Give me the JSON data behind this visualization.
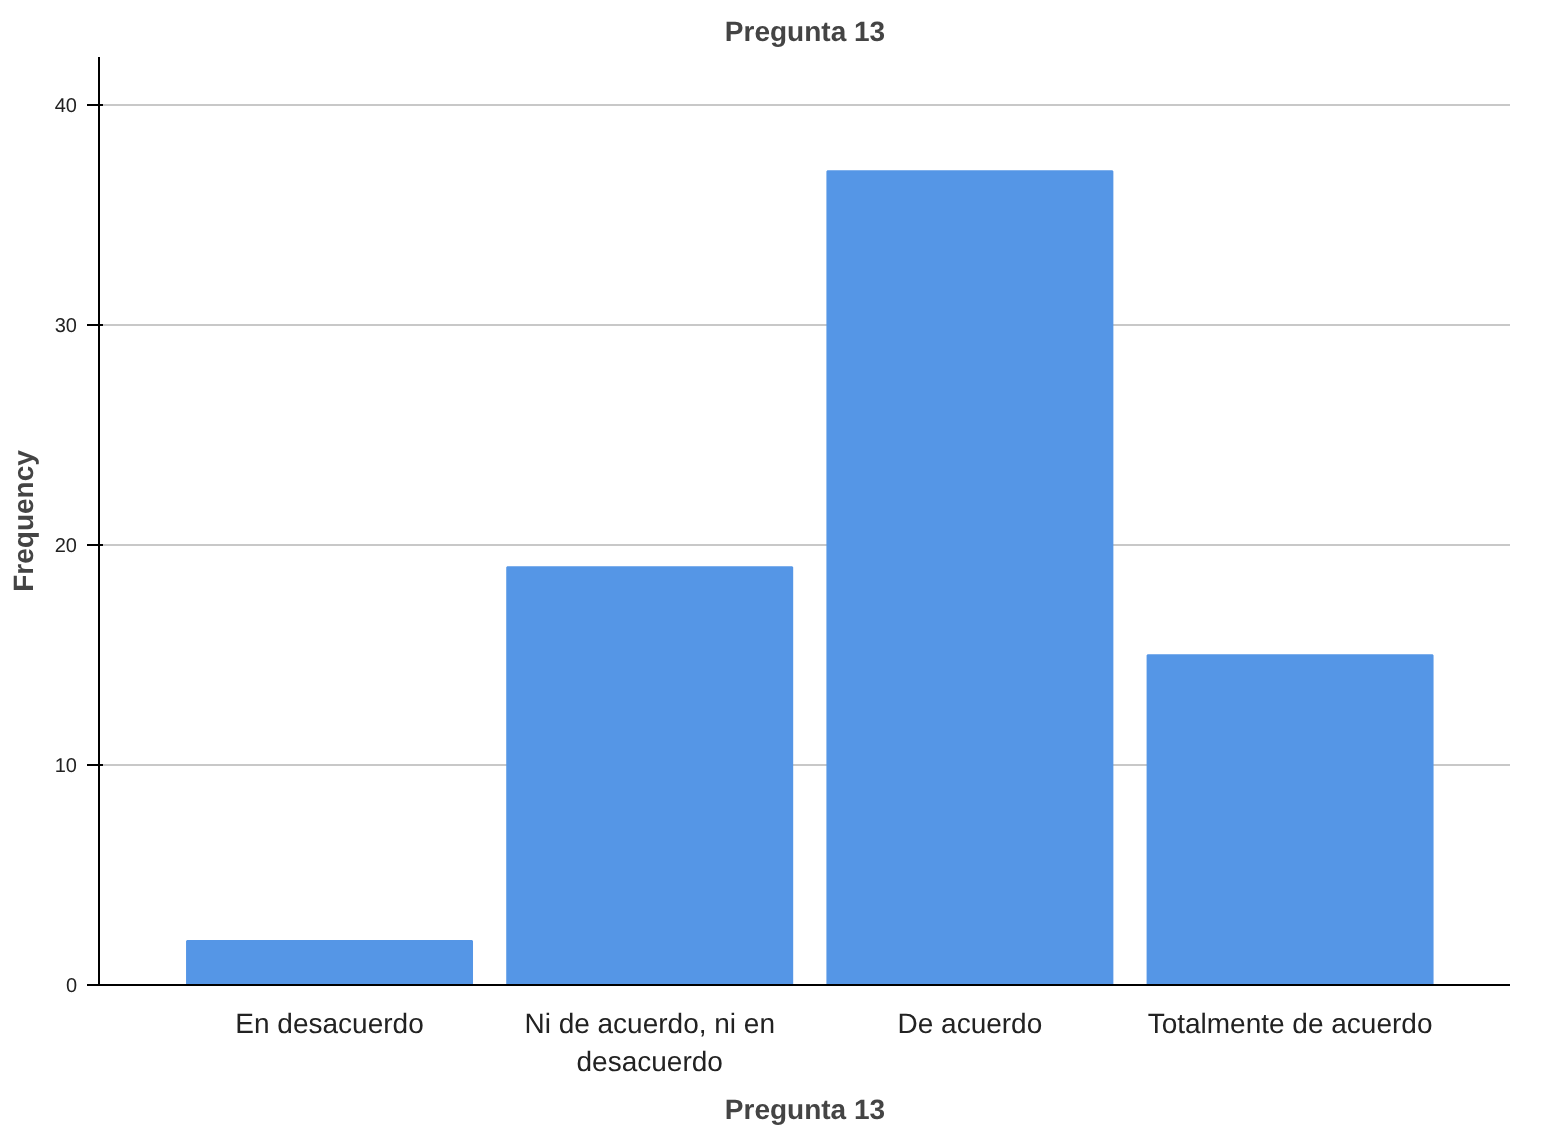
{
  "chart_data": {
    "type": "bar",
    "title": "Pregunta 13",
    "xlabel": "Pregunta 13",
    "ylabel": "Frequency",
    "categories": [
      "En desacuerdo",
      "Ni de acuerdo, ni en desacuerdo",
      "De acuerdo",
      "Totalmente de acuerdo"
    ],
    "values": [
      2,
      19,
      37,
      15
    ],
    "color": "#5596e6",
    "ylim": [
      0,
      42.2
    ],
    "yticks": [
      0,
      10,
      20,
      30,
      40
    ],
    "grid": "y"
  }
}
